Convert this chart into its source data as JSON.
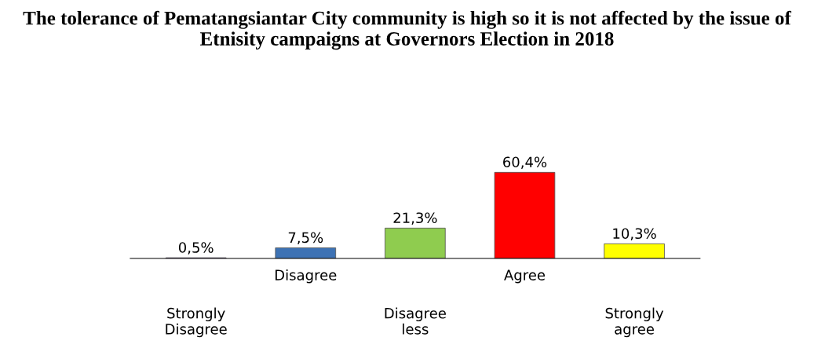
{
  "chart_data": {
    "type": "bar",
    "title": "The tolerance of Pematangsiantar City community is high so it is not affected by the issue of Etnisity campaigns at Governors Election in 2018",
    "categories": [
      "Strongly Disagree",
      "Disagree",
      "Disagree less",
      "Agree",
      "Strongly agree"
    ],
    "values": [
      0.5,
      7.5,
      21.3,
      60.4,
      10.3
    ],
    "colors": [
      "#7030a0",
      "#3d72b4",
      "#8fcc4f",
      "#ff0000",
      "#ffff00"
    ],
    "value_labels": [
      "0,5%",
      "7,5%",
      "21,3%",
      "60,4%",
      "10,3%"
    ],
    "grid": false,
    "legend": false
  }
}
